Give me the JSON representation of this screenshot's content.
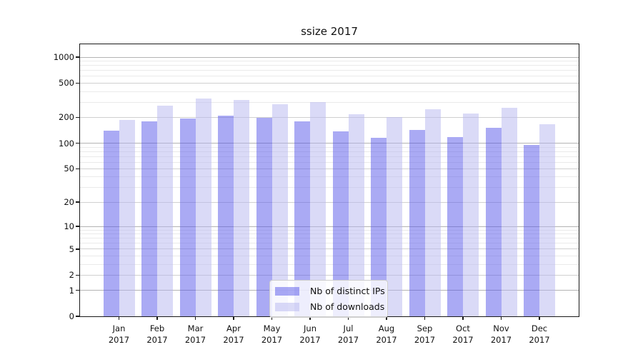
{
  "chart_data": {
    "type": "bar",
    "title": "ssize 2017",
    "categories": [
      "Jan 2017",
      "Feb 2017",
      "Mar 2017",
      "Apr 2017",
      "May 2017",
      "Jun 2017",
      "Jul 2017",
      "Aug 2017",
      "Sep 2017",
      "Oct 2017",
      "Nov 2017",
      "Dec 2017"
    ],
    "series": [
      {
        "name": "Nb of distinct IPs",
        "color": "#5555e9",
        "alpha": 0.5,
        "values": [
          140,
          179,
          193,
          210,
          199,
          181,
          138,
          115,
          142,
          117,
          152,
          95
        ]
      },
      {
        "name": "Nb of downloads",
        "color": "#b5b5ef",
        "alpha": 0.5,
        "values": [
          185,
          275,
          332,
          318,
          285,
          303,
          217,
          200,
          250,
          223,
          260,
          165
        ]
      }
    ],
    "xlabel": "",
    "ylabel": "",
    "yscale": "symlog",
    "ylim": [
      0,
      1410
    ],
    "y_ticks": [
      0,
      1,
      2,
      5,
      10,
      20,
      50,
      100,
      200,
      500,
      1000
    ],
    "y_minor_gridlines": [
      3,
      4,
      6,
      7,
      8,
      9,
      30,
      40,
      60,
      70,
      80,
      90,
      300,
      400,
      600,
      700,
      800,
      900
    ],
    "grid": true,
    "legend_position": "lower center"
  },
  "colors": {
    "bar_distinct_ips": "#5555e9",
    "bar_downloads": "#b5b5ef",
    "bar_alpha": 0.5,
    "grid_major": "#b3b3b3",
    "grid_mid": "#d0d0d0",
    "grid_minor": "#eaeaea",
    "spine": "#1a1a1a",
    "text": "#111111",
    "legend_border": "#cccccc"
  }
}
